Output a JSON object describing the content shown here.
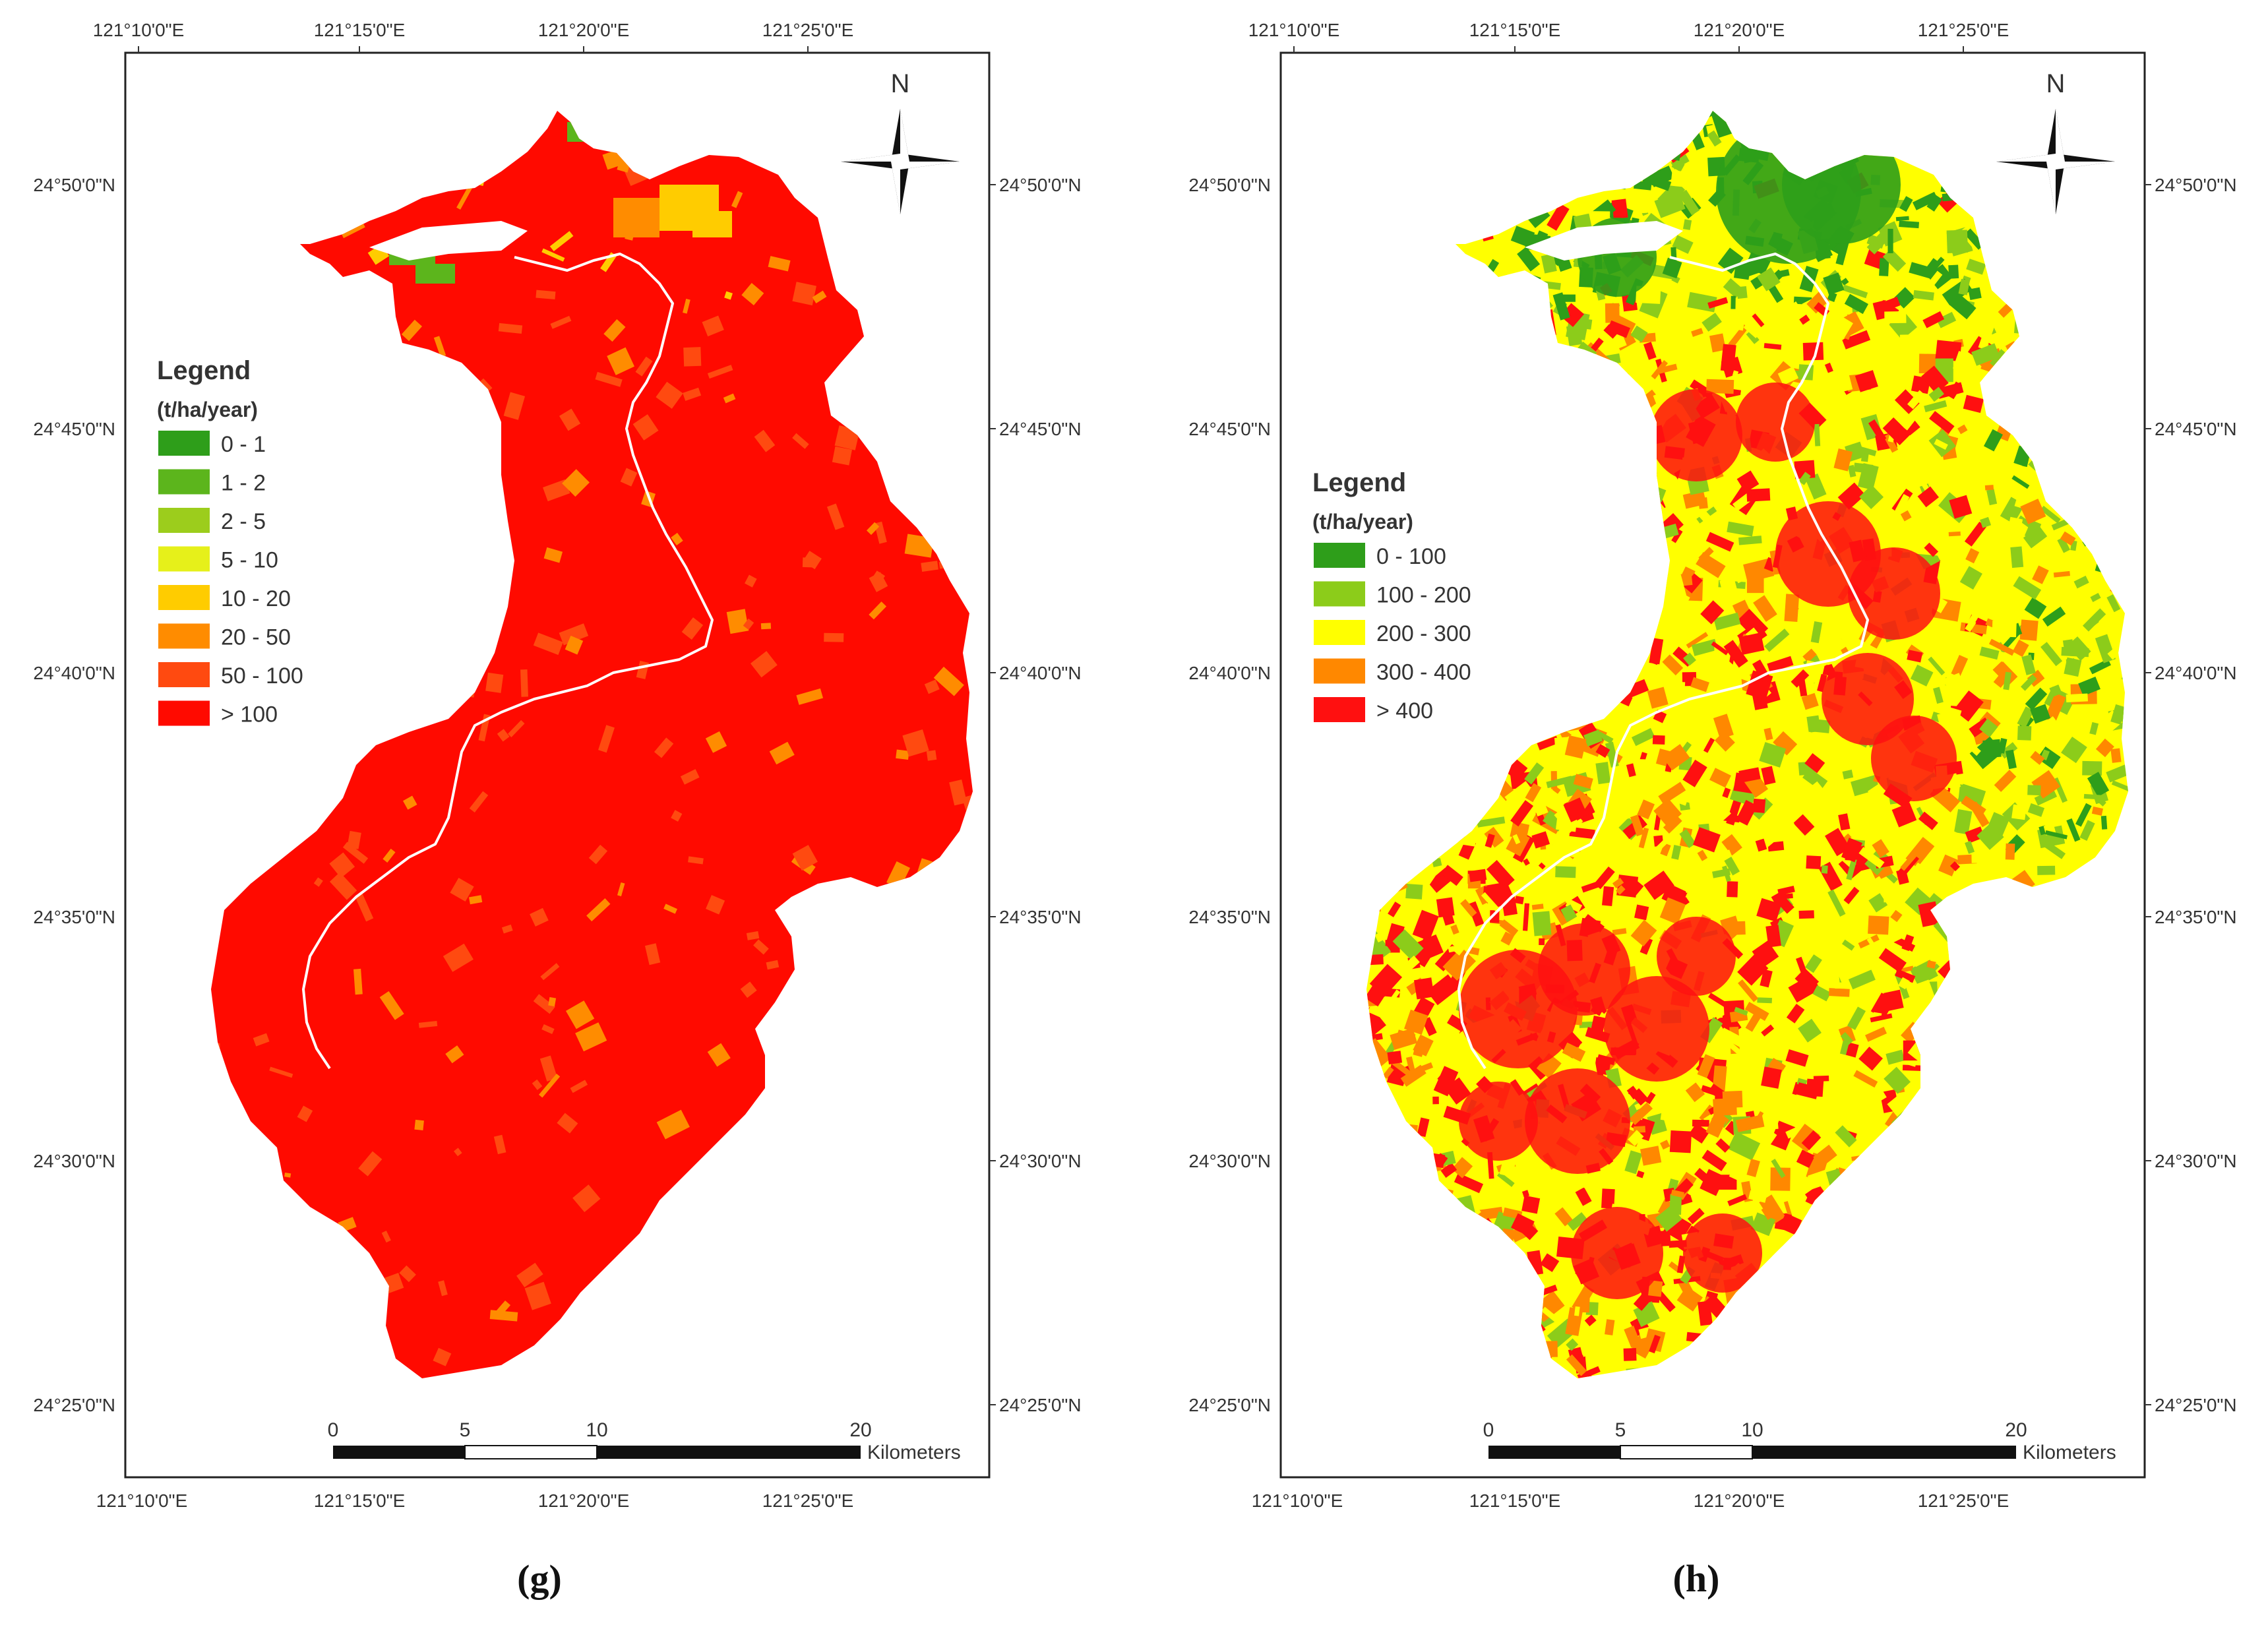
{
  "colors": {
    "g": [
      "#2e9e1a",
      "#5cb51c",
      "#9ccd1c",
      "#e6f01a",
      "#ffcc00",
      "#ff8c00",
      "#ff4a10",
      "#ff0a00"
    ],
    "h": [
      "#2e9e1a",
      "#8ccc1a",
      "#ffff00",
      "#ff8800",
      "#ff1010"
    ],
    "river": "#ffffff",
    "frame": "#222222"
  },
  "maps": [
    {
      "id": "g",
      "panel_label": "(g)",
      "legend": {
        "title": "Legend",
        "unit": "(t/ha/year)",
        "classes": [
          "0 - 1",
          "1 - 2",
          "2 - 5",
          "5 - 10",
          "10 - 20",
          "20 - 50",
          "50 - 100",
          "> 100"
        ]
      },
      "top_ticks": [
        "121°10'0\"E",
        "121°15'0\"E",
        "121°20'0\"E",
        "121°25'0\"E"
      ],
      "bottom_ticks": [
        "121°10'0\"E",
        "121°15'0\"E",
        "121°20'0\"E",
        "121°25'0\"E"
      ],
      "left_ticks": [
        "24°50'0\"N",
        "24°45'0\"N",
        "24°40'0\"N",
        "24°35'0\"N",
        "24°30'0\"N",
        "24°25'0\"N"
      ],
      "right_ticks": [
        "24°50'0\"N",
        "24°45'0\"N",
        "24°40'0\"N",
        "24°35'0\"N",
        "24°30'0\"N",
        "24°25'0\"N"
      ],
      "north": "N",
      "scale": {
        "labels": [
          "0",
          "5",
          "10",
          "20"
        ],
        "unit": "Kilometers"
      }
    },
    {
      "id": "h",
      "panel_label": "(h)",
      "legend": {
        "title": "Legend",
        "unit": "(t/ha/year)",
        "classes": [
          "0 - 100",
          "100 - 200",
          "200 - 300",
          "300 - 400",
          "> 400"
        ]
      },
      "top_ticks": [
        "121°10'0\"E",
        "121°15'0\"E",
        "121°20'0\"E",
        "121°25'0\"E"
      ],
      "bottom_ticks": [
        "121°10'0\"E",
        "121°15'0\"E",
        "121°20'0\"E",
        "121°25'0\"E"
      ],
      "left_ticks": [
        "24°50'0\"N",
        "24°45'0\"N",
        "24°40'0\"N",
        "24°35'0\"N",
        "24°30'0\"N",
        "24°25'0\"N"
      ],
      "right_ticks": [
        "24°50'0\"N",
        "24°45'0\"N",
        "24°40'0\"N",
        "24°35'0\"N",
        "24°30'0\"N",
        "24°25'0\"N"
      ],
      "north": "N",
      "scale": {
        "labels": [
          "0",
          "5",
          "10",
          "20"
        ],
        "unit": "Kilometers"
      }
    }
  ]
}
